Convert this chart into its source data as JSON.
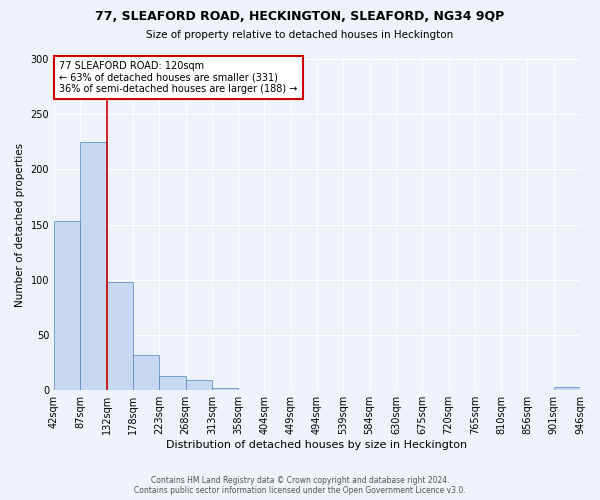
{
  "title1": "77, SLEAFORD ROAD, HECKINGTON, SLEAFORD, NG34 9QP",
  "title2": "Size of property relative to detached houses in Heckington",
  "xlabel": "Distribution of detached houses by size in Heckington",
  "ylabel": "Number of detached properties",
  "bar_values": [
    153,
    225,
    98,
    32,
    13,
    9,
    2,
    0,
    0,
    0,
    0,
    0,
    0,
    0,
    0,
    0,
    0,
    0,
    0,
    3
  ],
  "bar_labels": [
    "42sqm",
    "87sqm",
    "132sqm",
    "178sqm",
    "223sqm",
    "268sqm",
    "313sqm",
    "358sqm",
    "404sqm",
    "449sqm",
    "494sqm",
    "539sqm",
    "584sqm",
    "630sqm",
    "675sqm",
    "720sqm",
    "765sqm",
    "810sqm",
    "856sqm",
    "901sqm",
    "946sqm"
  ],
  "bar_color": "#c6d9f0",
  "bar_edge_color": "#4f81bd",
  "annotation_text_line1": "77 SLEAFORD ROAD: 120sqm",
  "annotation_text_line2": "← 63% of detached houses are smaller (331)",
  "annotation_text_line3": "36% of semi-detached houses are larger (188) →",
  "annotation_box_color": "#ffffff",
  "annotation_box_edge": "#cc0000",
  "property_line_color": "#cc0000",
  "ylim_max": 300,
  "footnote1": "Contains HM Land Registry data © Crown copyright and database right 2024.",
  "footnote2": "Contains public sector information licensed under the Open Government Licence v3.0.",
  "background_color": "#eef2f9"
}
